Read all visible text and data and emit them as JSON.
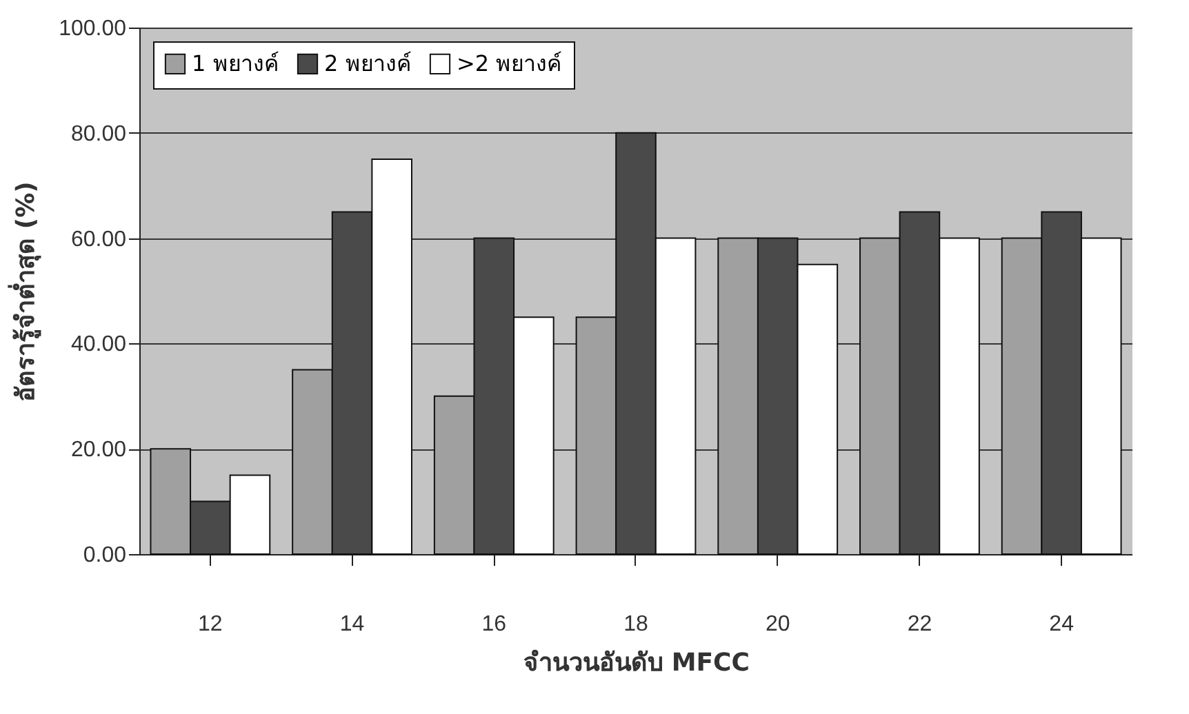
{
  "chart_data": {
    "type": "bar",
    "xlabel": "จำนวนอันดับ MFCC",
    "ylabel": "อัตรารู้จำต่ำสุด (%)",
    "categories": [
      "12",
      "14",
      "16",
      "18",
      "20",
      "22",
      "24"
    ],
    "series": [
      {
        "name": "1 พยางค์",
        "color": "#a0a0a0",
        "values": [
          20,
          35,
          30,
          45,
          60,
          60,
          60
        ]
      },
      {
        "name": "2 พยางค์",
        "color": "#4a4a4a",
        "values": [
          10,
          65,
          60,
          80,
          60,
          65,
          65
        ]
      },
      {
        "name": ">2 พยางค์",
        "color": "#ffffff",
        "values": [
          15,
          75,
          45,
          60,
          55,
          60,
          60
        ]
      }
    ],
    "ylim": [
      0,
      100
    ],
    "yticks": [
      {
        "value": 0,
        "label": "0.00"
      },
      {
        "value": 20,
        "label": "20.00"
      },
      {
        "value": 40,
        "label": "40.00"
      },
      {
        "value": 60,
        "label": "60.00"
      },
      {
        "value": 80,
        "label": "80.00"
      },
      {
        "value": 100,
        "label": "100.00"
      }
    ],
    "grid": "y",
    "legend": "top left"
  }
}
